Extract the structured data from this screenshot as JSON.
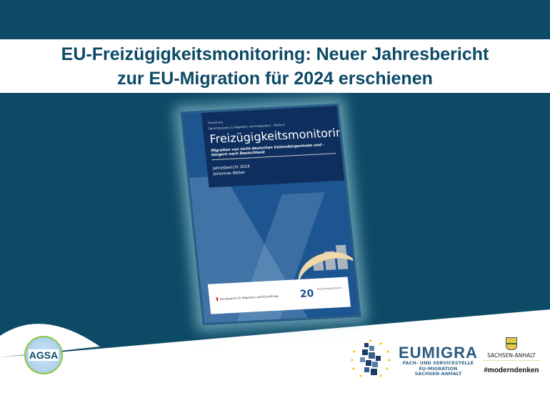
{
  "headline": {
    "line1": "EU-Freizügigkeitsmonitoring: Neuer Jahresbericht",
    "line2": "zur EU-Migration für 2024 erschienen"
  },
  "report_cover": {
    "category": "Forschung",
    "series": "Berichtsreihen zu Migration und Integration – Reihe 2",
    "title": "Freizügigkeitsmonitoring",
    "subtitle": "Migration von nicht-deutschen Unionsbürgerinnen und -bürgern nach Deutschland",
    "report": "Jahresbericht 2024",
    "author": "Johannes Weber",
    "publisher": "Bundesamt für Migration und Flüchtlinge",
    "anniversary_number": "20",
    "anniversary_text": "Forschungszentrum"
  },
  "logos": {
    "agsa": "AGSA",
    "eumigra": {
      "name": "EUMIGRA",
      "line1": "FACH- UND SERVICESTELLE",
      "line2": "EU-MIGRATION",
      "line3": "SACHSEN-ANHALT"
    },
    "sachsen_anhalt": "SACHSEN-ANHALT",
    "hashtag": "#moderndenken"
  },
  "colors": {
    "background": "#0d4a66",
    "band": "#ffffff",
    "cover": "#0e2f5e"
  }
}
